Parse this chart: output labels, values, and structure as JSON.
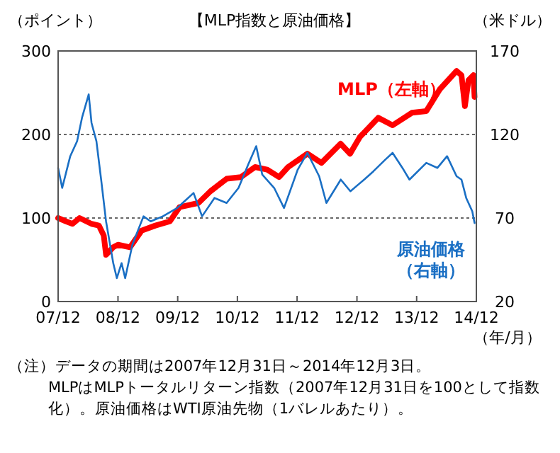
{
  "chart_data": {
    "type": "line",
    "title": "【MLP指数と原油価格】",
    "ylabel": "（ポイント）",
    "y2label": "（米ドル）",
    "xlabel": "（年/月）",
    "xlim": [
      "2007-12",
      "2014-12"
    ],
    "xticks": [
      {
        "value": "2007-12",
        "label": "07/12"
      },
      {
        "value": "2008-12",
        "label": "08/12"
      },
      {
        "value": "2009-12",
        "label": "09/12"
      },
      {
        "value": "2010-12",
        "label": "10/12"
      },
      {
        "value": "2011-12",
        "label": "11/12"
      },
      {
        "value": "2012-12",
        "label": "12/12"
      },
      {
        "value": "2013-12",
        "label": "13/12"
      },
      {
        "value": "2014-12",
        "label": "14/12"
      }
    ],
    "ylim": [
      0,
      300
    ],
    "yticks": [
      0,
      100,
      200,
      300
    ],
    "y2lim": [
      20,
      170
    ],
    "y2ticks": [
      20,
      70,
      120,
      170
    ],
    "grid": "y",
    "series": [
      {
        "name": "MLP（左軸）",
        "color": "#ff0000",
        "axis": "y",
        "x": [
          "2007-12-01",
          "2008-01-18",
          "2008-02-27",
          "2008-04-10",
          "2008-06-22",
          "2008-08-06",
          "2008-09-05",
          "2008-09-19",
          "2008-11-02",
          "2008-12-01",
          "2009-02-13",
          "2009-04-25",
          "2009-07-18",
          "2009-10-14",
          "2009-12-12",
          "2010-04-07",
          "2010-06-19",
          "2010-09-26",
          "2010-12-22",
          "2011-03-19",
          "2011-06-01",
          "2011-08-13",
          "2011-10-07",
          "2012-02-02",
          "2012-04-28",
          "2012-08-23",
          "2012-10-20",
          "2012-12-19",
          "2013-04-10",
          "2013-07-07",
          "2013-11-02",
          "2014-01-29",
          "2014-04-21",
          "2014-08-02",
          "2014-09-01",
          "2014-09-22",
          "2014-10-14",
          "2014-11-13",
          "2014-11-20"
        ],
        "values": [
          100,
          96,
          93,
          100,
          93,
          91,
          79,
          56,
          65,
          68,
          65,
          85,
          91,
          96,
          113,
          118,
          132,
          147,
          149,
          161,
          158,
          149,
          161,
          177,
          166,
          189,
          177,
          197,
          220,
          211,
          226,
          228,
          254,
          276,
          271,
          234,
          265,
          271,
          245
        ]
      },
      {
        "name": "原油価格（右軸）",
        "color": "#1a6fc4",
        "axis": "y2",
        "x": [
          "2007-12-01",
          "2007-12-26",
          "2008-02-13",
          "2008-03-26",
          "2008-04-25",
          "2008-06-05",
          "2008-06-22",
          "2008-07-22",
          "2008-08-20",
          "2008-09-19",
          "2008-11-02",
          "2008-11-24",
          "2008-12-23",
          "2009-01-14",
          "2009-02-27",
          "2009-05-06",
          "2009-06-19",
          "2009-09-01",
          "2009-11-28",
          "2010-03-08",
          "2010-04-29",
          "2010-07-14",
          "2010-09-26",
          "2010-12-08",
          "2011-02-05",
          "2011-03-26",
          "2011-05-02",
          "2011-07-14",
          "2011-09-12",
          "2011-12-05",
          "2012-02-02",
          "2012-04-14",
          "2012-05-28",
          "2012-08-24",
          "2012-10-22",
          "2013-01-14",
          "2013-03-12",
          "2013-05-24",
          "2013-07-07",
          "2013-09-05",
          "2013-10-18",
          "2014-01-29",
          "2014-04-07",
          "2014-06-05",
          "2014-08-02",
          "2014-09-01",
          "2014-09-30",
          "2014-11-06",
          "2014-11-20"
        ],
        "values": [
          100,
          88,
          107,
          116,
          130,
          144,
          127,
          116,
          93,
          68,
          43,
          34,
          43,
          34,
          54,
          71,
          68,
          71,
          76,
          85,
          71,
          82,
          79,
          88,
          102,
          113,
          96,
          88,
          76,
          99,
          109,
          95,
          79,
          93,
          86,
          93,
          98,
          105,
          109,
          100,
          93,
          103,
          100,
          107,
          95,
          93,
          82,
          74,
          67
        ]
      }
    ],
    "annotations": [
      "（注）データの期間は2007年12月31日～2014年12月3日。",
      "MLPはMLPトータルリターン指数（2007年12月31日を100として指数化）。原油価格はWTI原油先物（1バレルあたり）。"
    ]
  }
}
